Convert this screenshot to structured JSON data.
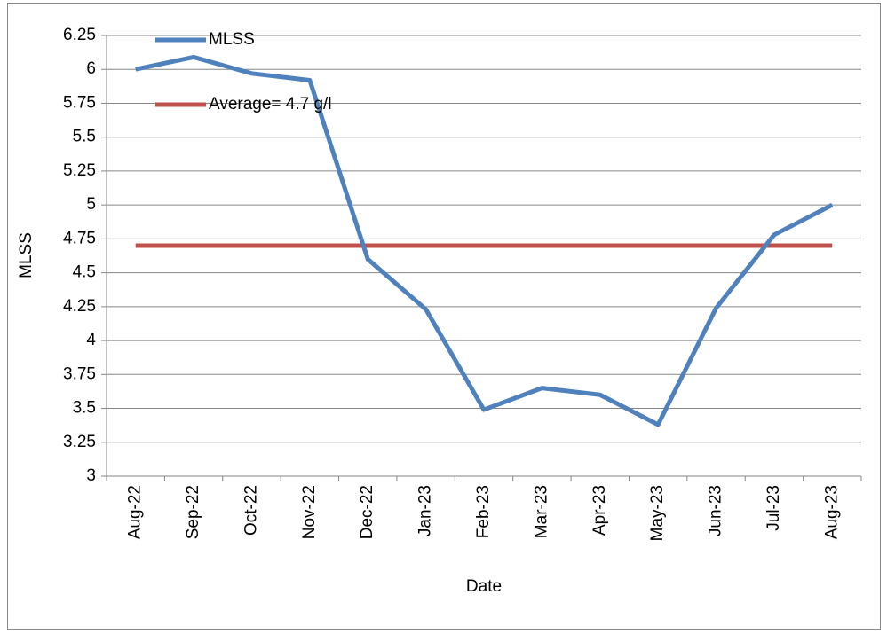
{
  "chart_data": {
    "type": "line",
    "x_label": "Date",
    "y_label": "MLSS",
    "categories": [
      "Aug-22",
      "Sep-22",
      "Oct-22",
      "Nov-22",
      "Dec-22",
      "Jan-23",
      "Feb-23",
      "Mar-23",
      "Apr-23",
      "May-23",
      "Jun-23",
      "Jul-23",
      "Aug-23"
    ],
    "series": [
      {
        "name": "MLSS",
        "color": "#4f81bd",
        "values": [
          6.0,
          6.09,
          5.97,
          5.92,
          4.6,
          4.23,
          3.49,
          3.65,
          3.6,
          3.38,
          4.24,
          4.78,
          5.0
        ]
      },
      {
        "name": "Average= 4.7 g/l",
        "color": "#c0504d",
        "values": [
          4.7,
          4.7,
          4.7,
          4.7,
          4.7,
          4.7,
          4.7,
          4.7,
          4.7,
          4.7,
          4.7,
          4.7,
          4.7
        ]
      }
    ],
    "ylim": [
      3,
      6.25
    ],
    "yticks": [
      3,
      3.25,
      3.5,
      3.75,
      4,
      4.25,
      4.5,
      4.75,
      5,
      5.25,
      5.5,
      5.75,
      6,
      6.25
    ],
    "grid": true,
    "legend": "upper left"
  }
}
